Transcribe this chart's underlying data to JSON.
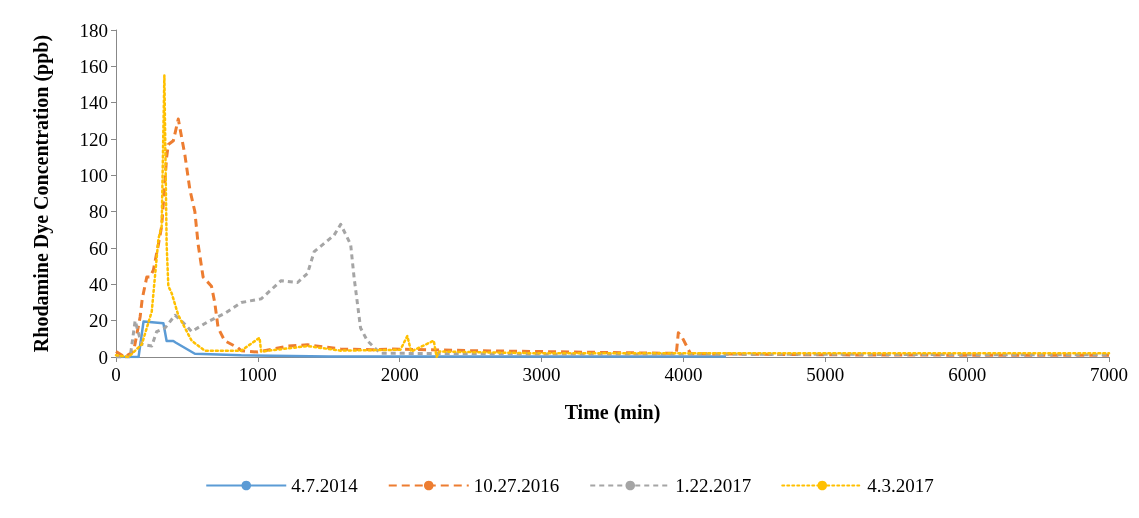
{
  "chart_data": {
    "type": "line",
    "xlabel": "Time (min)",
    "ylabel": "Rhodamine Dye Concentration (ppb)",
    "xlim": [
      0,
      7000
    ],
    "xticks": [
      0,
      1000,
      2000,
      3000,
      4000,
      5000,
      6000,
      7000
    ],
    "ylim": [
      0,
      180
    ],
    "yticks": [
      0,
      20,
      40,
      60,
      80,
      100,
      120,
      140,
      160,
      180
    ],
    "grid": false,
    "legend": "bottom",
    "marker": "none",
    "series": [
      {
        "name": "4.7.2014",
        "color": "#5b9bd5",
        "line_style": "solid",
        "x": [
          0,
          159,
          194,
          334,
          357,
          404,
          420,
          556,
          883,
          1500,
          2500,
          3500,
          4300
        ],
        "values": [
          0,
          0,
          19.5,
          18.6,
          8.8,
          8.8,
          8,
          1.8,
          0.9,
          0.3,
          0.3,
          0.3,
          0.3
        ]
      },
      {
        "name": "10.27.2016",
        "color": "#ed7d31",
        "line_style": "dashed",
        "x": [
          0,
          60,
          124,
          170,
          185,
          217,
          241,
          264,
          299,
          322,
          357,
          369,
          404,
          439,
          486,
          521,
          556,
          579,
          614,
          673,
          696,
          720,
          766,
          860,
          883,
          1000,
          1210,
          1350,
          1584,
          1800,
          1935,
          2500,
          3000,
          3900,
          3950,
          3964,
          3990,
          4050,
          5000,
          6000,
          7000
        ],
        "values": [
          3,
          0,
          3,
          22,
          32,
          44,
          44,
          48,
          62,
          72,
          110,
          117,
          119,
          131,
          111,
          92,
          80,
          62,
          44,
          39,
          30,
          16,
          9,
          5,
          3.5,
          2.7,
          6,
          6.7,
          4.4,
          4,
          4.4,
          3.5,
          3,
          2,
          2,
          13.3,
          11,
          1.8,
          1.2,
          1,
          1
        ]
      },
      {
        "name": "1.22.2017",
        "color": "#a5a5a5",
        "line_style": "dashed",
        "x": [
          0,
          100,
          135,
          159,
          182,
          252,
          287,
          346,
          416,
          486,
          533,
          650,
          766,
          883,
          1023,
          1164,
          1280,
          1350,
          1397,
          1537,
          1584,
          1654,
          1678,
          1724,
          1771,
          1864,
          2050,
          3000,
          4000,
          5000,
          6000,
          7000
        ],
        "values": [
          0,
          0,
          20,
          13,
          7,
          6,
          14,
          16,
          23,
          18,
          14,
          19.5,
          24,
          30,
          32,
          42,
          41,
          46,
          58,
          67,
          73,
          62,
          44,
          16,
          9,
          2,
          2,
          1.5,
          1.5,
          1.5,
          1.3,
          1.3
        ]
      },
      {
        "name": "4.3.2017",
        "color": "#ffc000",
        "line_style": "dotted",
        "x": [
          0,
          89,
          182,
          252,
          299,
          322,
          341,
          357,
          369,
          393,
          439,
          533,
          626,
          883,
          1012,
          1023,
          1350,
          1584,
          2005,
          2054,
          2080,
          2240,
          2260,
          2280,
          3000,
          4000,
          5000,
          6000,
          7000
        ],
        "values": [
          1,
          0,
          7,
          25,
          65,
          72,
          155,
          62,
          39,
          35,
          23,
          9,
          3.5,
          3.5,
          10.6,
          3,
          6,
          3.5,
          4,
          11.6,
          3,
          9,
          0,
          3,
          2,
          2,
          2,
          2,
          2
        ]
      }
    ]
  }
}
